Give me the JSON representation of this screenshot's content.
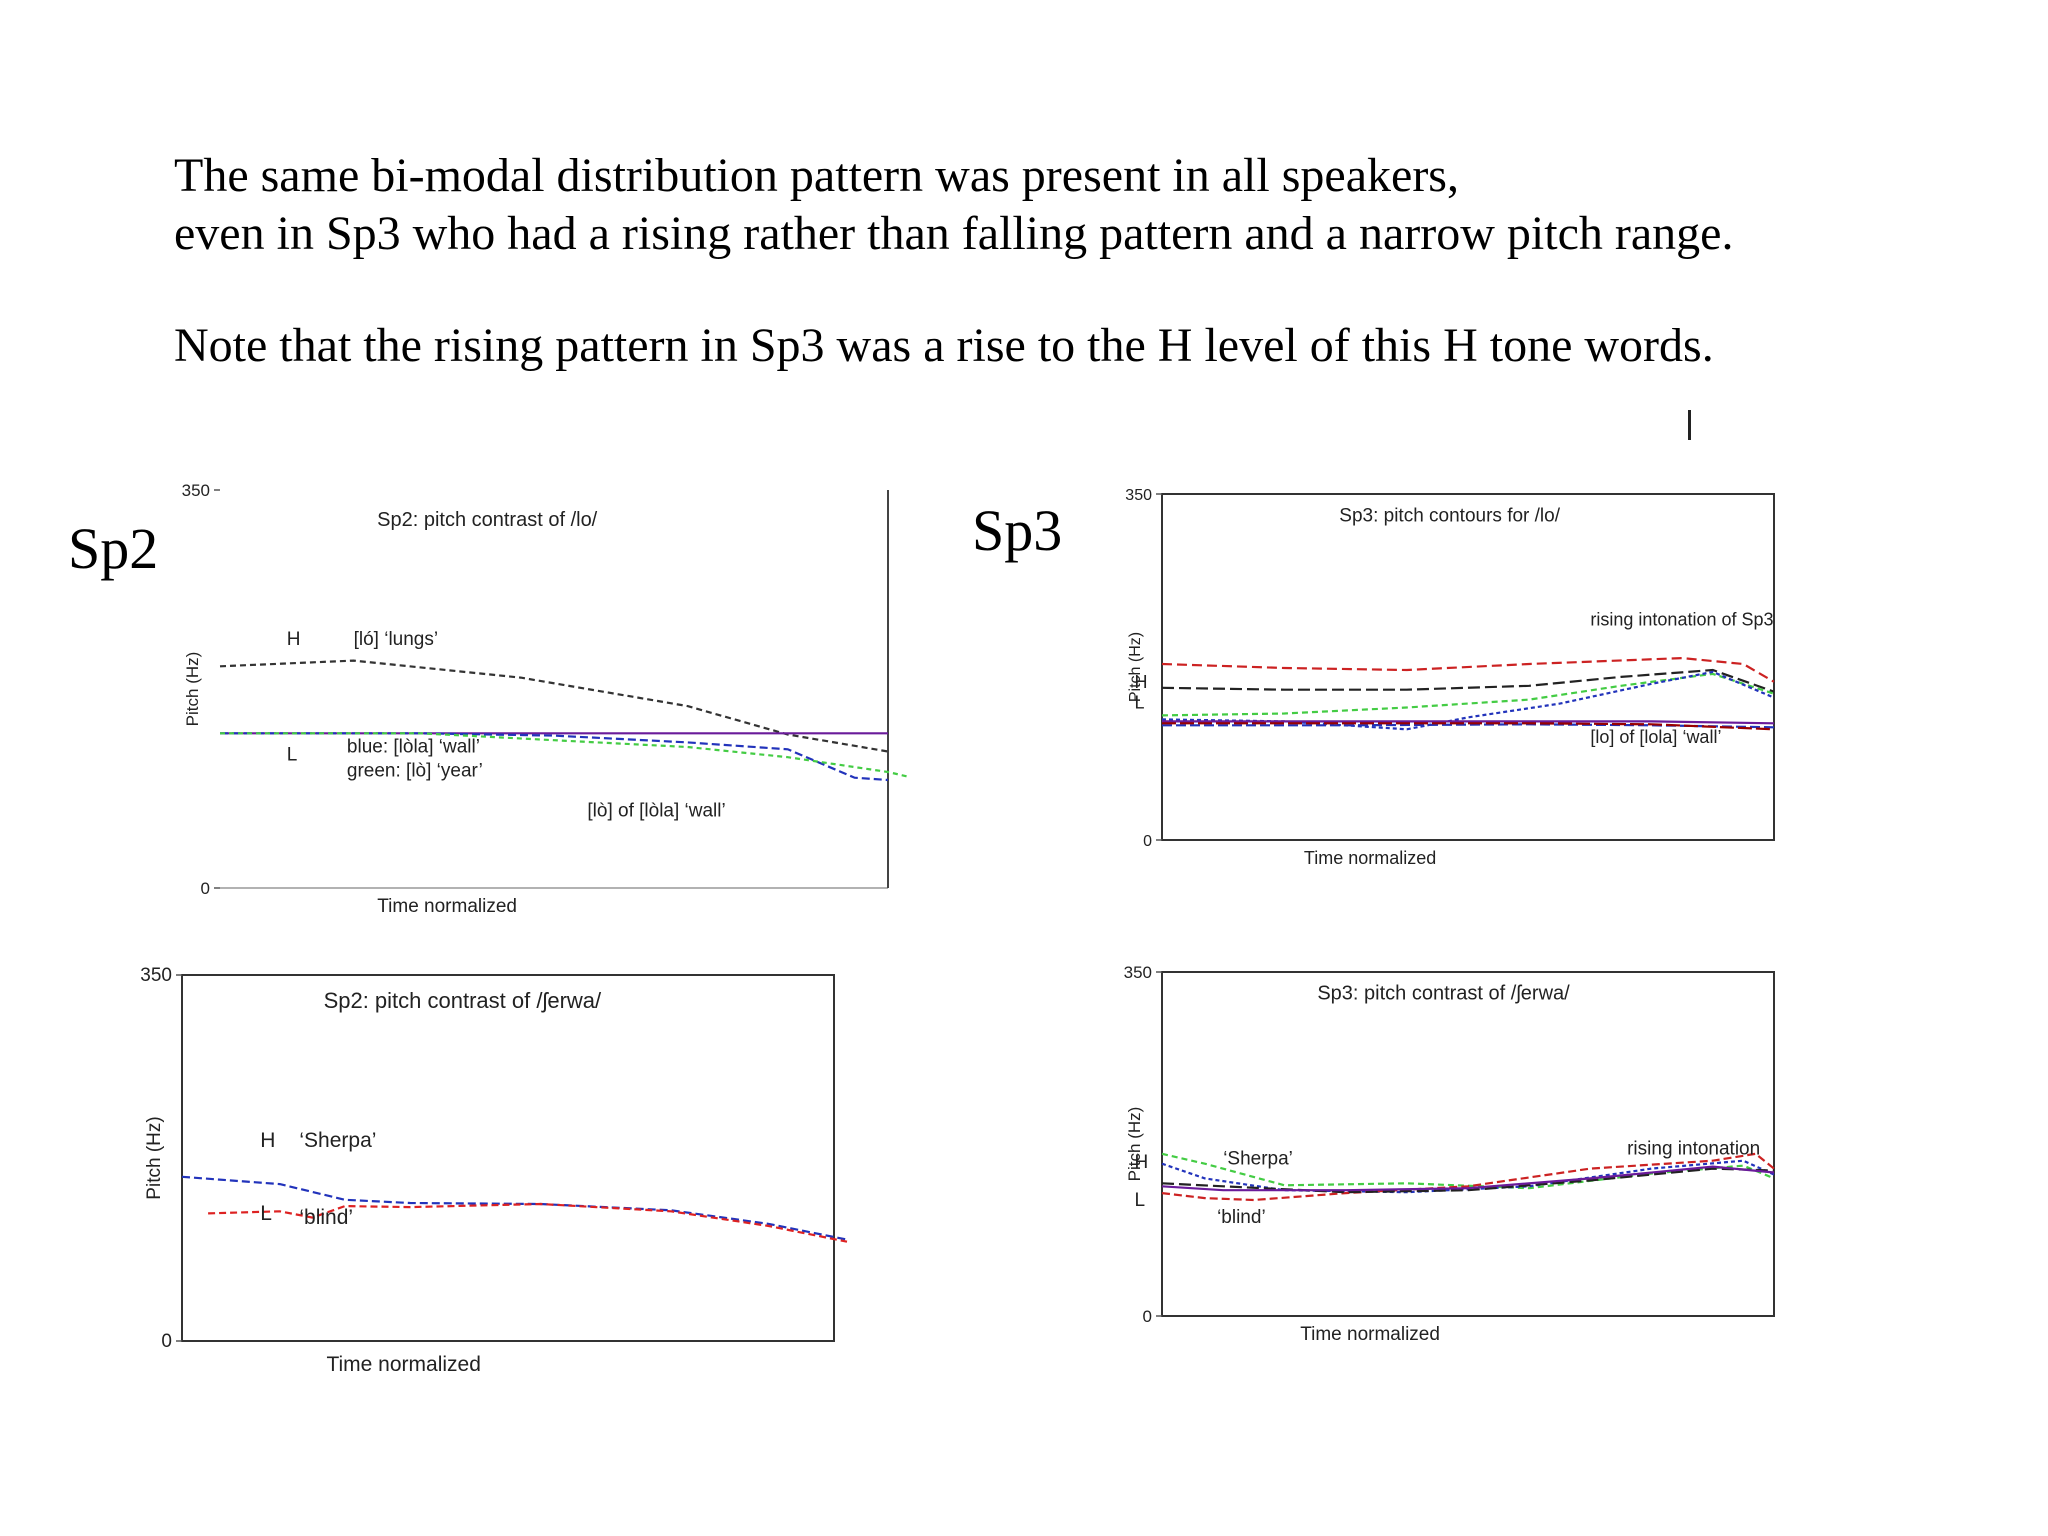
{
  "slide": {
    "line1": "The same bi-modal distribution pattern was present in all speakers,",
    "line2": "even in Sp3 who had a rising rather than falling pattern and a narrow pitch range.",
    "line3": "Note that the rising pattern in Sp3 was a rise to the H level of this H tone words.",
    "sp2_label": "Sp2",
    "sp3_label": "Sp3"
  },
  "chart_data": [
    {
      "type": "line",
      "title": "Sp2: pitch contrast of /lo/",
      "xlabel": "Time normalized",
      "ylabel": "Pitch (Hz)",
      "ylim": [
        0,
        350
      ],
      "yticks": [
        "0",
        "350"
      ],
      "annotations": {
        "H": "H",
        "L": "L",
        "high": "[ló] ‘lungs’",
        "blue": "blue: [lòla] ‘wall’",
        "green": "green: [lò] ‘year’",
        "lo_of_lola": "[lò] of [lòla] ‘wall’"
      },
      "series": [
        {
          "color": "#333333",
          "dash": "6,4",
          "x": [
            0,
            0.2,
            0.45,
            0.7,
            0.85,
            1.0
          ],
          "y": [
            195,
            200,
            185,
            160,
            135,
            120
          ]
        },
        {
          "color": "#6a1b9a",
          "dash": "",
          "x": [
            0,
            0.2,
            0.4,
            0.6,
            0.8,
            1.0
          ],
          "y": [
            136,
            136,
            136,
            136,
            136,
            136
          ]
        },
        {
          "color": "#2233bb",
          "dash": "8,4",
          "x": [
            0,
            0.3,
            0.5,
            0.7,
            0.85,
            0.95,
            1.0
          ],
          "y": [
            136,
            136,
            134,
            128,
            122,
            97,
            95
          ]
        },
        {
          "color": "#44cc44",
          "dash": "5,4",
          "x": [
            0,
            0.3,
            0.5,
            0.7,
            0.85,
            1.0,
            1.03
          ],
          "y": [
            136,
            136,
            130,
            124,
            115,
            102,
            98
          ]
        }
      ]
    },
    {
      "type": "line",
      "title": "Sp2: pitch contrast of /ʃerwa/",
      "xlabel": "Time normalized",
      "ylabel": "Pitch (Hz)",
      "ylim": [
        0,
        350
      ],
      "yticks": [
        "0",
        "350"
      ],
      "annotations": {
        "H": "H",
        "L": "L",
        "high": "‘Sherpa’",
        "low": "‘blind’"
      },
      "series": [
        {
          "color": "#2233bb",
          "dash": "8,4",
          "x": [
            0,
            0.15,
            0.25,
            0.35,
            0.55,
            0.75,
            0.9,
            1.02
          ],
          "y": [
            157,
            150,
            135,
            132,
            131,
            125,
            112,
            97
          ]
        },
        {
          "color": "#dd2222",
          "dash": "7,4",
          "x": [
            0.04,
            0.15,
            0.2,
            0.25,
            0.35,
            0.55,
            0.75,
            0.9,
            1.02
          ],
          "y": [
            122,
            124,
            118,
            129,
            128,
            131,
            124,
            110,
            95
          ]
        }
      ]
    },
    {
      "type": "line",
      "title": "Sp3: pitch contours for /lo/",
      "xlabel": "Time normalized",
      "ylabel": "Pitch (Hz)",
      "ylim": [
        0,
        350
      ],
      "yticks": [
        "0",
        "350"
      ],
      "annotations": {
        "H": "H",
        "L": "L",
        "rise": "rising intonation of Sp3",
        "low": "[lo] of [lola] ‘wall’"
      },
      "series": [
        {
          "color": "#cc2222",
          "dash": "10,5",
          "x": [
            0,
            0.2,
            0.4,
            0.6,
            0.85,
            0.95,
            1.0
          ],
          "y": [
            178,
            174,
            172,
            178,
            184,
            178,
            160
          ]
        },
        {
          "color": "#222222",
          "dash": "12,5",
          "x": [
            0,
            0.2,
            0.4,
            0.6,
            0.75,
            0.9,
            1.0
          ],
          "y": [
            154,
            152,
            152,
            156,
            165,
            172,
            150
          ]
        },
        {
          "color": "#44cc44",
          "dash": "6,4",
          "x": [
            0,
            0.2,
            0.4,
            0.6,
            0.75,
            0.9,
            1.0
          ],
          "y": [
            126,
            128,
            134,
            142,
            156,
            168,
            148
          ]
        },
        {
          "color": "#2233bb",
          "dash": "4,3",
          "x": [
            0,
            0.2,
            0.4,
            0.5,
            0.65,
            0.8,
            0.9,
            1.0
          ],
          "y": [
            122,
            120,
            112,
            124,
            138,
            158,
            170,
            144
          ]
        },
        {
          "color": "#6a1b9a",
          "dash": "",
          "x": [
            0,
            0.3,
            0.6,
            0.8,
            1.0
          ],
          "y": [
            120,
            120,
            120,
            120,
            118
          ]
        },
        {
          "color": "#2233bb",
          "dash": "10,4",
          "x": [
            0,
            0.3,
            0.6,
            0.8,
            1.0
          ],
          "y": [
            116,
            116,
            117,
            116,
            114
          ]
        },
        {
          "color": "#990000",
          "dash": "14,4",
          "x": [
            0,
            0.3,
            0.6,
            0.8,
            1.0
          ],
          "y": [
            118,
            118,
            118,
            117,
            112
          ]
        }
      ]
    },
    {
      "type": "line",
      "title": "Sp3: pitch contrast of /ʃerwa/",
      "xlabel": "Time normalized",
      "ylabel": "Pitch (Hz)",
      "ylim": [
        0,
        350
      ],
      "yticks": [
        "0",
        "350"
      ],
      "annotations": {
        "H": "H",
        "L": "L",
        "high": "‘Sherpa’",
        "low": "‘blind’",
        "rise": "rising intonation"
      },
      "series": [
        {
          "color": "#44cc44",
          "dash": "6,4",
          "x": [
            0,
            0.07,
            0.2,
            0.4,
            0.6,
            0.8,
            0.95,
            1.0
          ],
          "y": [
            165,
            155,
            133,
            135,
            130,
            145,
            153,
            140
          ]
        },
        {
          "color": "#2233bb",
          "dash": "4,3",
          "x": [
            0,
            0.07,
            0.2,
            0.4,
            0.6,
            0.8,
            0.95,
            1.0
          ],
          "y": [
            155,
            140,
            128,
            126,
            132,
            150,
            158,
            144
          ]
        },
        {
          "color": "#cc2222",
          "dash": "8,4",
          "x": [
            0,
            0.07,
            0.15,
            0.3,
            0.5,
            0.7,
            0.9,
            0.97,
            1.0
          ],
          "y": [
            125,
            120,
            118,
            125,
            132,
            150,
            158,
            165,
            150
          ]
        },
        {
          "color": "#222222",
          "dash": "12,5",
          "x": [
            0,
            0.1,
            0.3,
            0.5,
            0.7,
            0.9,
            1.0
          ],
          "y": [
            135,
            132,
            126,
            128,
            138,
            150,
            148
          ]
        },
        {
          "color": "#6a1b9a",
          "dash": "",
          "x": [
            0,
            0.1,
            0.3,
            0.5,
            0.7,
            0.9,
            1.0
          ],
          "y": [
            132,
            128,
            128,
            130,
            140,
            152,
            146
          ]
        }
      ]
    }
  ]
}
